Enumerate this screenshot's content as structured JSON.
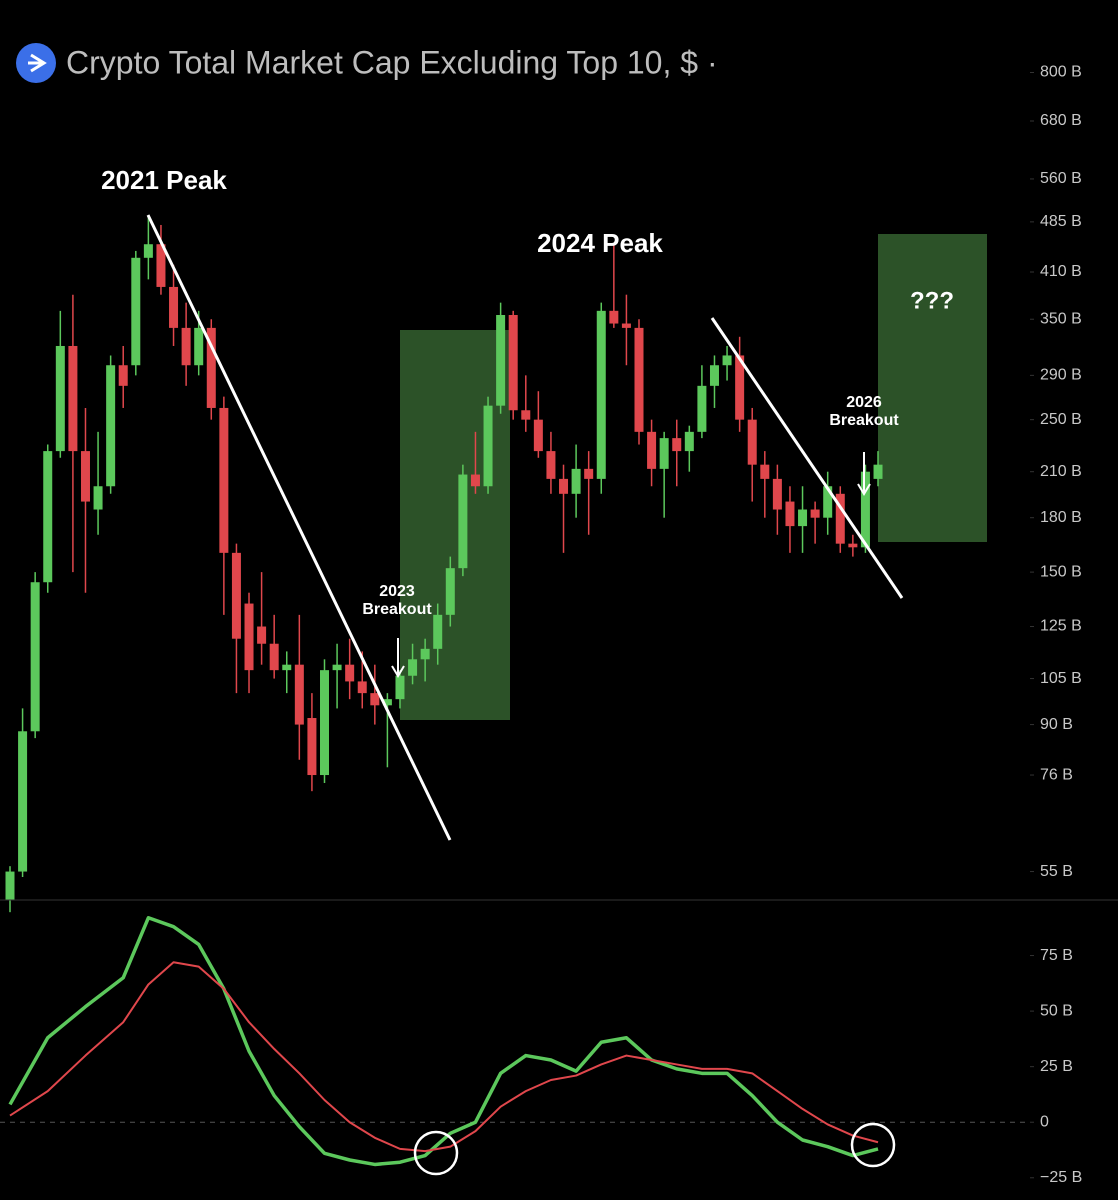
{
  "chart_data": [
    {
      "type": "candlestick",
      "title": "Crypto Total Market Cap Excluding Top 10, $ ·",
      "annotations": [
        "2021 Peak",
        "2024 Peak",
        "2023",
        "Breakout",
        "2026",
        "Breakout",
        "???"
      ],
      "log_scale": true,
      "up_color": "#5cc85c",
      "down_color": "#e0474c",
      "open": [
        50,
        55,
        88,
        145,
        225,
        320,
        225,
        185,
        200,
        300,
        300,
        430,
        450,
        390,
        340,
        300,
        340,
        260,
        160,
        135,
        125,
        118,
        108,
        110,
        92,
        76,
        108,
        110,
        104,
        100,
        96,
        98,
        106,
        112,
        116,
        130,
        152,
        208,
        200,
        262,
        355,
        258,
        250,
        225,
        205,
        195,
        212,
        205,
        360,
        345,
        340,
        240,
        212,
        235,
        225,
        240,
        280,
        300,
        310,
        250,
        215,
        205,
        190,
        175,
        185,
        180,
        195,
        165,
        163,
        205
      ],
      "high": [
        56,
        95,
        150,
        230,
        360,
        380,
        260,
        240,
        310,
        320,
        440,
        495,
        480,
        420,
        370,
        360,
        350,
        270,
        165,
        140,
        150,
        130,
        115,
        130,
        100,
        112,
        118,
        120,
        115,
        110,
        100,
        108,
        118,
        120,
        135,
        158,
        215,
        240,
        270,
        370,
        360,
        290,
        275,
        240,
        215,
        230,
        225,
        370,
        450,
        380,
        350,
        250,
        240,
        250,
        245,
        300,
        310,
        320,
        330,
        260,
        225,
        215,
        200,
        200,
        190,
        210,
        200,
        170,
        215,
        225
      ],
      "low": [
        48,
        54,
        86,
        140,
        220,
        150,
        140,
        170,
        195,
        260,
        290,
        400,
        380,
        320,
        280,
        290,
        250,
        130,
        100,
        100,
        110,
        105,
        100,
        80,
        72,
        74,
        95,
        98,
        95,
        90,
        78,
        95,
        103,
        104,
        110,
        125,
        148,
        195,
        195,
        255,
        250,
        240,
        220,
        195,
        160,
        180,
        170,
        195,
        340,
        300,
        230,
        200,
        180,
        200,
        210,
        235,
        260,
        285,
        240,
        190,
        180,
        170,
        160,
        160,
        165,
        170,
        160,
        158,
        160,
        200
      ],
      "close": [
        55,
        88,
        145,
        225,
        320,
        225,
        190,
        200,
        300,
        280,
        430,
        450,
        390,
        340,
        300,
        340,
        260,
        160,
        120,
        108,
        118,
        108,
        110,
        90,
        76,
        108,
        110,
        104,
        100,
        96,
        98,
        106,
        112,
        116,
        130,
        152,
        208,
        200,
        262,
        355,
        258,
        250,
        225,
        205,
        195,
        212,
        205,
        360,
        345,
        340,
        240,
        212,
        235,
        225,
        240,
        280,
        300,
        310,
        250,
        215,
        205,
        185,
        175,
        185,
        180,
        200,
        165,
        163,
        210,
        215
      ],
      "ylim": [
        50,
        1020
      ],
      "yticks": [
        {
          "value": 55,
          "label": "55 B"
        },
        {
          "value": 76,
          "label": "76 B"
        },
        {
          "value": 90,
          "label": "90 B"
        },
        {
          "value": 105,
          "label": "105 B"
        },
        {
          "value": 125,
          "label": "125 B"
        },
        {
          "value": 150,
          "label": "150 B"
        },
        {
          "value": 180,
          "label": "180 B"
        },
        {
          "value": 210,
          "label": "210 B"
        },
        {
          "value": 250,
          "label": "250 B"
        },
        {
          "value": 290,
          "label": "290 B"
        },
        {
          "value": 350,
          "label": "350 B"
        },
        {
          "value": 410,
          "label": "410 B"
        },
        {
          "value": 485,
          "label": "485 B"
        },
        {
          "value": 560,
          "label": "560 B"
        },
        {
          "value": 680,
          "label": "680 B"
        },
        {
          "value": 800,
          "label": "800 B"
        }
      ]
    },
    {
      "type": "line",
      "x": [
        0,
        3,
        6,
        9,
        11,
        13,
        15,
        17,
        19,
        21,
        23,
        25,
        27,
        29,
        31,
        33,
        35,
        37,
        39,
        41,
        43,
        45,
        47,
        49,
        51,
        53,
        55,
        57,
        59,
        61,
        63,
        65,
        67,
        69
      ],
      "series": [
        {
          "color": "#5cc85c",
          "values": [
            8,
            38,
            52,
            65,
            92,
            88,
            80,
            60,
            32,
            12,
            -2,
            -14,
            -17,
            -19,
            -18,
            -15,
            -5,
            0,
            22,
            30,
            28,
            23,
            36,
            38,
            28,
            24,
            22,
            22,
            12,
            0,
            -8,
            -11,
            -15,
            -12
          ]
        },
        {
          "color": "#e0474c",
          "values": [
            3,
            14,
            30,
            45,
            62,
            72,
            70,
            60,
            45,
            33,
            22,
            10,
            0,
            -7,
            -12,
            -13,
            -11,
            -4,
            7,
            14,
            19,
            21,
            26,
            30,
            28,
            26,
            24,
            24,
            22,
            14,
            6,
            -1,
            -6,
            -9
          ]
        }
      ],
      "ylim": [
        -35,
        100
      ],
      "yticks": [
        {
          "value": -25,
          "label": "−25 B"
        },
        0,
        {
          "value": 25,
          "label": "25 B"
        },
        {
          "value": 50,
          "label": "50 B"
        },
        {
          "value": 75,
          "label": "75 B"
        }
      ]
    }
  ]
}
